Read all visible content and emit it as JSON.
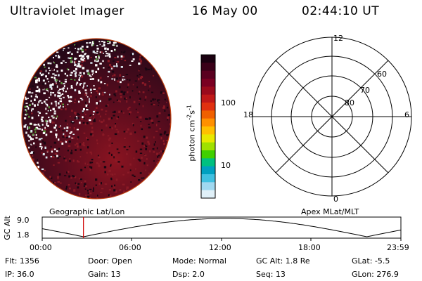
{
  "header": {
    "title": "Ultraviolet Imager",
    "date": "16 May 00",
    "time": "02:44:10 UT"
  },
  "colorbar": {
    "label": "photon cm",
    "label_exp1": "-2",
    "label_mid": "s",
    "label_exp2": "-1",
    "ticks": [
      "100",
      "10"
    ],
    "colors": [
      "#1a0010",
      "#3a0018",
      "#5a0020",
      "#7a0022",
      "#9a0a1c",
      "#c01818",
      "#e03010",
      "#f06000",
      "#ff9000",
      "#ffc000",
      "#e8e800",
      "#a0e000",
      "#40d000",
      "#00c080",
      "#00a0c0",
      "#40c0e0",
      "#a0d8f0",
      "#e0f0f8"
    ]
  },
  "polar": {
    "labels": {
      "top": "12",
      "bottom": "0",
      "left": "18",
      "right": "6"
    },
    "rings": [
      "60",
      "70",
      "80"
    ]
  },
  "timeline": {
    "left_title": "Geographic Lat/Lon",
    "right_title": "Apex  MLat/MLT",
    "axis_label": "GC Alt",
    "y_max": "9.0",
    "y_min": "1.8",
    "time_ticks": [
      "00:00",
      "06:00",
      "12:00",
      "18:00",
      "23:59"
    ],
    "marker_fraction": 0.115
  },
  "info": {
    "row1": [
      "Flt: 1356",
      "Door: Open",
      "Mode: Normal",
      "GC Alt: 1.8 Re",
      "GLat:  -5.5"
    ],
    "row2": [
      "IP: 36.0",
      "Gain: 13",
      "Dsp:     2.0",
      "Seq: 13",
      "GLon: 276.9"
    ]
  }
}
